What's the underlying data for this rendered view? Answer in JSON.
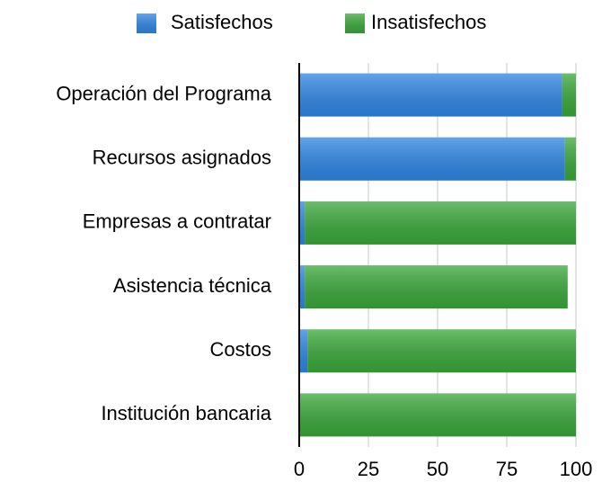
{
  "chart_data": {
    "type": "stacked_barh",
    "categories": [
      "Operación del Programa",
      "Recursos asignados",
      "Empresas a contratar",
      "Asistencia técnica",
      "Costos",
      "Institución bancaria"
    ],
    "series": [
      {
        "name": "Satisfechos",
        "color": "#2f86e4",
        "values": [
          95,
          96,
          2,
          2,
          3,
          0
        ]
      },
      {
        "name": "Insatisfechos",
        "color": "#3aa83a",
        "values": [
          5,
          4,
          98,
          95,
          97,
          100
        ]
      }
    ],
    "xlim": [
      0,
      100
    ],
    "xticks": [
      0,
      25,
      50,
      75,
      100
    ],
    "grid": true,
    "legend": "top"
  }
}
